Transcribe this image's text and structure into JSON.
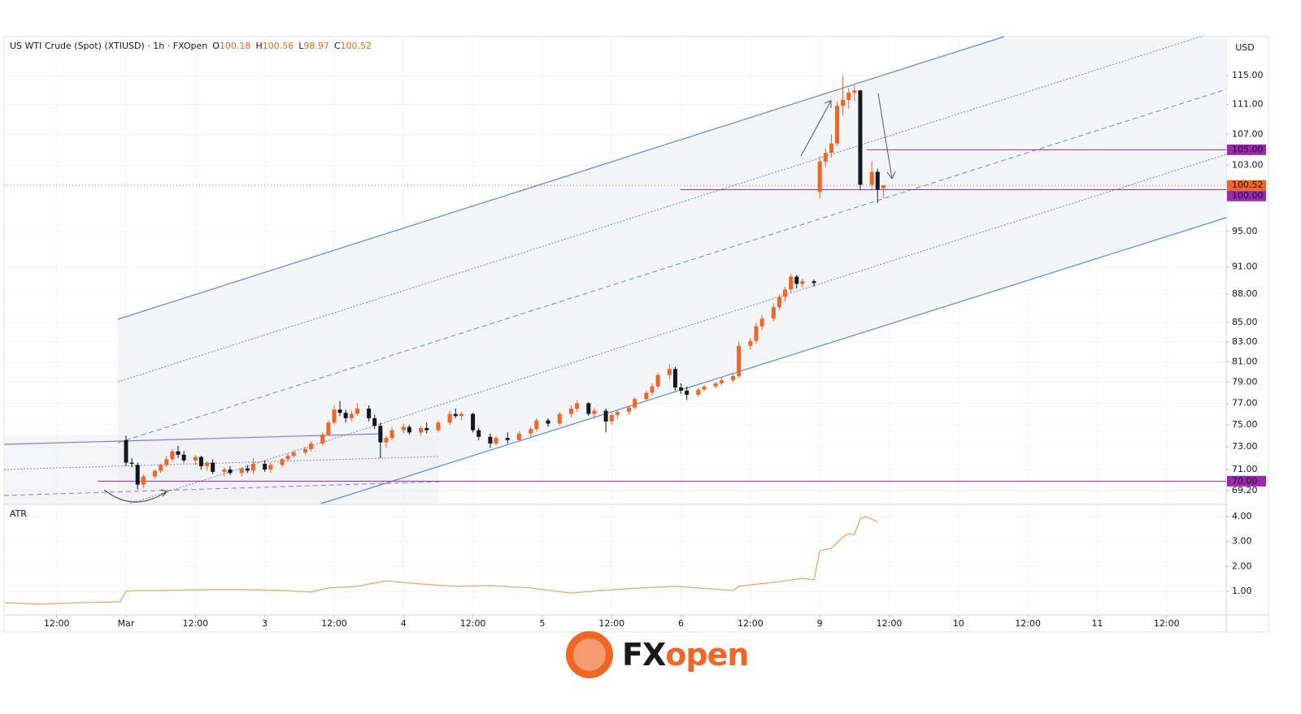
{
  "chart_data": {
    "type": "candlestick",
    "title": "US WTI Crude (Spot) (XTIUSD) · 1h · FXOpen",
    "ohlc_letters": [
      "O",
      "H",
      "L",
      "C"
    ],
    "currency": "USD",
    "log_scale": true,
    "grid": true,
    "up_color": "#f26522",
    "down_color": "#131722",
    "x": [
      12,
      13,
      14,
      15,
      17,
      18,
      19,
      20,
      21,
      22,
      24,
      25,
      26,
      27,
      29,
      30,
      32,
      33,
      34,
      36,
      37,
      39,
      40,
      41,
      43,
      44,
      46,
      47,
      48,
      49,
      50,
      51,
      52,
      54,
      55,
      56,
      57,
      58,
      60,
      61,
      63,
      64,
      66,
      68,
      69,
      70,
      72,
      73,
      75,
      76,
      78,
      80,
      82,
      83,
      85,
      87,
      89,
      90,
      92,
      93,
      95,
      96,
      97,
      99,
      100,
      102,
      103,
      104,
      106,
      107,
      108,
      109,
      111,
      112,
      114,
      115,
      117,
      118,
      120,
      121,
      122,
      124,
      125,
      126,
      127,
      128,
      129,
      131,
      132,
      133,
      134,
      135,
      136,
      137,
      138,
      139,
      141,
      142,
      143
    ],
    "open": [
      73.6,
      71.6,
      71.4,
      69.7,
      70.4,
      70.9,
      71.4,
      71.9,
      72.6,
      72.3,
      71.8,
      72.1,
      71.3,
      71.6,
      70.8,
      71.0,
      70.7,
      71.1,
      70.9,
      71.5,
      71.0,
      71.4,
      71.9,
      72.2,
      72.5,
      72.8,
      73.3,
      74.1,
      75.2,
      76.4,
      76.1,
      75.6,
      76.0,
      76.5,
      75.6,
      74.9,
      73.4,
      73.8,
      74.5,
      74.8,
      74.3,
      74.7,
      74.5,
      75.2,
      76.0,
      75.8,
      76.0,
      74.5,
      73.9,
      73.3,
      73.8,
      73.6,
      74.2,
      74.6,
      75.4,
      75.1,
      76.0,
      76.5,
      77.0,
      76.0,
      76.3,
      75.3,
      75.9,
      76.2,
      76.6,
      77.4,
      78.0,
      78.6,
      79.7,
      80.3,
      78.5,
      78.2,
      77.8,
      78.3,
      78.6,
      78.9,
      79.2,
      79.6,
      82.6,
      83.1,
      84.6,
      85.4,
      86.6,
      87.7,
      88.5,
      89.9,
      89.1,
      89.4,
      99.7,
      103.5,
      104.6,
      105.8,
      110.8,
      111.6,
      112.6,
      112.9,
      100.6,
      102.2,
      100.18
    ],
    "high": [
      74.0,
      72.0,
      71.6,
      70.6,
      71.0,
      71.5,
      72.2,
      72.8,
      73.1,
      72.6,
      72.3,
      72.2,
      71.7,
      71.9,
      71.2,
      71.3,
      71.2,
      71.4,
      72.0,
      71.8,
      71.6,
      72.0,
      72.4,
      72.7,
      73.0,
      73.5,
      74.3,
      75.4,
      76.8,
      77.2,
      76.4,
      76.3,
      77.0,
      76.8,
      75.9,
      75.2,
      74.0,
      74.8,
      75.1,
      75.0,
      74.9,
      75.2,
      75.4,
      76.3,
      76.5,
      76.2,
      76.1,
      74.7,
      74.2,
      74.0,
      74.3,
      74.4,
      74.8,
      75.6,
      75.6,
      76.2,
      76.8,
      77.3,
      77.1,
      76.6,
      76.5,
      76.2,
      76.4,
      76.8,
      77.6,
      78.2,
      78.9,
      79.9,
      80.8,
      80.5,
      78.9,
      78.6,
      78.5,
      78.8,
      79.1,
      79.5,
      79.8,
      83.0,
      83.4,
      85.0,
      85.8,
      87.0,
      88.0,
      88.8,
      90.2,
      90.1,
      89.7,
      89.6,
      104.2,
      105.2,
      107.0,
      111.4,
      115.0,
      113.2,
      113.6,
      113.0,
      103.6,
      102.6,
      100.56
    ],
    "low": [
      71.3,
      71.2,
      69.3,
      69.4,
      70.2,
      70.7,
      71.2,
      71.7,
      72.0,
      71.6,
      71.4,
      71.0,
      70.9,
      70.6,
      70.4,
      70.5,
      70.4,
      70.7,
      70.6,
      70.8,
      70.7,
      71.2,
      71.7,
      72.0,
      72.3,
      72.6,
      73.1,
      74.0,
      75.0,
      75.8,
      75.2,
      75.3,
      75.8,
      75.3,
      74.6,
      72.0,
      72.9,
      73.6,
      74.2,
      74.1,
      74.0,
      74.2,
      74.3,
      75.0,
      75.6,
      75.4,
      74.3,
      73.6,
      72.9,
      73.1,
      73.3,
      73.5,
      73.9,
      74.4,
      74.8,
      74.9,
      75.7,
      76.2,
      75.8,
      75.5,
      74.3,
      75.0,
      75.5,
      75.9,
      76.4,
      77.2,
      77.7,
      78.4,
      79.3,
      78.2,
      77.9,
      77.3,
      77.6,
      78.1,
      78.4,
      78.7,
      79.0,
      79.4,
      82.2,
      82.8,
      84.2,
      85.1,
      86.3,
      87.2,
      88.2,
      88.6,
      88.7,
      88.8,
      98.9,
      102.8,
      104.0,
      105.5,
      109.5,
      110.4,
      111.5,
      100.0,
      99.9,
      98.4,
      98.97
    ],
    "close": [
      71.6,
      71.5,
      69.7,
      70.4,
      70.9,
      71.4,
      71.9,
      72.6,
      72.3,
      71.8,
      72.1,
      71.3,
      71.6,
      70.8,
      71.0,
      70.7,
      71.1,
      70.9,
      71.5,
      71.0,
      71.4,
      71.9,
      72.2,
      72.5,
      72.8,
      73.3,
      74.1,
      75.2,
      76.4,
      76.1,
      75.6,
      76.0,
      76.5,
      75.6,
      74.9,
      73.4,
      73.8,
      74.5,
      74.8,
      74.3,
      74.7,
      74.5,
      75.2,
      76.0,
      75.8,
      76.0,
      74.5,
      73.9,
      73.3,
      73.8,
      73.6,
      74.2,
      74.6,
      75.4,
      75.1,
      76.0,
      76.5,
      77.0,
      76.0,
      76.3,
      75.3,
      75.9,
      76.2,
      76.6,
      77.4,
      78.0,
      78.6,
      79.7,
      80.3,
      78.5,
      78.2,
      77.8,
      78.3,
      78.6,
      78.9,
      79.2,
      79.6,
      82.6,
      83.1,
      84.6,
      85.4,
      86.6,
      87.7,
      88.5,
      89.9,
      89.1,
      89.4,
      89.2,
      103.5,
      104.6,
      105.8,
      110.8,
      111.6,
      112.6,
      112.9,
      100.6,
      102.2,
      100.0,
      100.52
    ],
    "xlim": [
      -9.1,
      202.3
    ],
    "xticks": [
      {
        "value": 0,
        "label": "12:00"
      },
      {
        "value": 12,
        "label": "Mar"
      },
      {
        "value": 24,
        "label": "12:00"
      },
      {
        "value": 36,
        "label": "3"
      },
      {
        "value": 48,
        "label": "12:00"
      },
      {
        "value": 60,
        "label": "4"
      },
      {
        "value": 72,
        "label": "12:00"
      },
      {
        "value": 84,
        "label": "5"
      },
      {
        "value": 96,
        "label": "12:00"
      },
      {
        "value": 108,
        "label": "6"
      },
      {
        "value": 120,
        "label": "12:00"
      },
      {
        "value": 132,
        "label": "9"
      },
      {
        "value": 144,
        "label": "12:00"
      },
      {
        "value": 156,
        "label": "10"
      },
      {
        "value": 168,
        "label": "12:00"
      },
      {
        "value": 180,
        "label": "11"
      },
      {
        "value": 192,
        "label": "12:00"
      }
    ],
    "ylim": [
      68.1,
      120.6
    ],
    "yticks": [
      {
        "value": 115,
        "label": "115.00"
      },
      {
        "value": 111,
        "label": "111.00"
      },
      {
        "value": 107,
        "label": "107.00"
      },
      {
        "value": 103,
        "label": "103.00"
      },
      {
        "value": 95,
        "label": "95.00"
      },
      {
        "value": 91,
        "label": "91.00"
      },
      {
        "value": 88,
        "label": "88.00"
      },
      {
        "value": 85,
        "label": "85.00"
      },
      {
        "value": 83,
        "label": "83.00"
      },
      {
        "value": 81,
        "label": "81.00"
      },
      {
        "value": 79,
        "label": "79.00"
      },
      {
        "value": 77,
        "label": "77.00"
      },
      {
        "value": 75,
        "label": "75.00"
      },
      {
        "value": 73,
        "label": "73.00"
      },
      {
        "value": 71,
        "label": "71.00"
      },
      {
        "value": 69.2,
        "label": "69.20"
      }
    ],
    "price_lines": [
      {
        "value": 105,
        "label": "105.00",
        "color": "#9c27b0"
      },
      {
        "value": 100,
        "label": "100.00",
        "color": "#9c27b0"
      },
      {
        "value": 70,
        "label": "70.00",
        "color": "#9c27b0"
      }
    ],
    "last_price_color": "#f26522",
    "indicator": {
      "type": "line",
      "name": "ATR",
      "color": "#f4a36b",
      "x": [
        -9,
        -3,
        4,
        11,
        12,
        14,
        18,
        27,
        32,
        39,
        44,
        47,
        52,
        57,
        63,
        69,
        75,
        82,
        89,
        94,
        101,
        107,
        113,
        117,
        118,
        125,
        129,
        131,
        132,
        134,
        136,
        137,
        138,
        139,
        140,
        142
      ],
      "values": [
        0.54,
        0.48,
        0.54,
        0.58,
        1.0,
        1.03,
        1.03,
        1.07,
        1.07,
        1.03,
        0.97,
        1.13,
        1.2,
        1.42,
        1.29,
        1.2,
        1.23,
        1.13,
        0.93,
        1.03,
        1.13,
        1.2,
        1.1,
        1.03,
        1.2,
        1.39,
        1.52,
        1.46,
        2.63,
        2.73,
        3.18,
        3.31,
        3.28,
        3.93,
        4.0,
        3.8
      ],
      "ylim": [
        0.05,
        4.46
      ],
      "yticks": [
        {
          "value": 4,
          "label": "4.00"
        },
        {
          "value": 3,
          "label": "3.00"
        },
        {
          "value": 2,
          "label": "2.00"
        },
        {
          "value": 1,
          "label": "1.00"
        }
      ]
    }
  },
  "logo": [
    "FX",
    "open"
  ]
}
